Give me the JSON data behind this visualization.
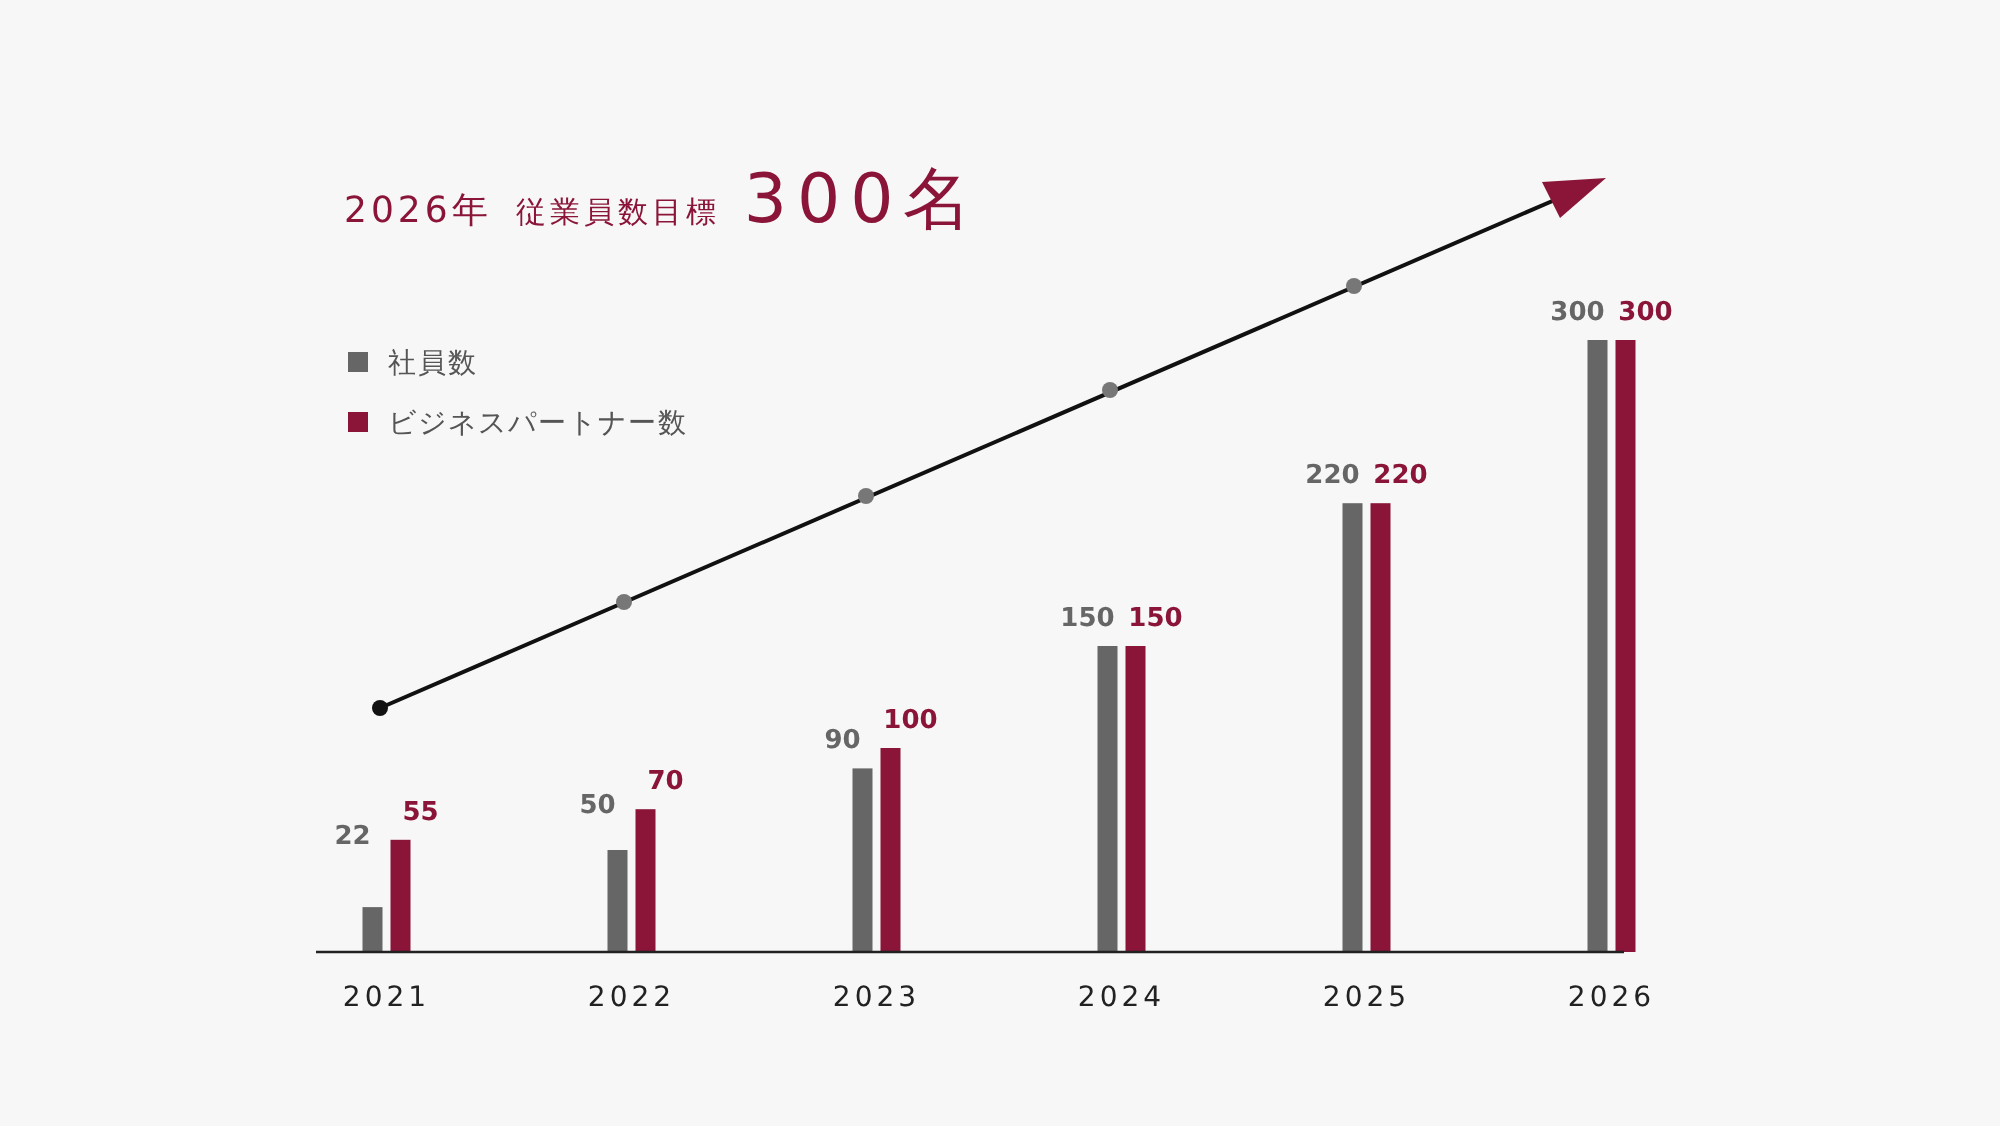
{
  "chart_data": {
    "type": "bar",
    "title": "2026年 従業員数目標 300名",
    "categories": [
      "2021",
      "2022",
      "2023",
      "2024",
      "2025",
      "2026"
    ],
    "series": [
      {
        "name": "社員数",
        "color": "#666666",
        "values": [
          22,
          50,
          90,
          150,
          220,
          300
        ]
      },
      {
        "name": "ビジネスパートナー数",
        "color": "#8a1538",
        "values": [
          55,
          70,
          100,
          150,
          220,
          300
        ]
      }
    ],
    "data_labels": true,
    "legend": "top left"
  }
}
